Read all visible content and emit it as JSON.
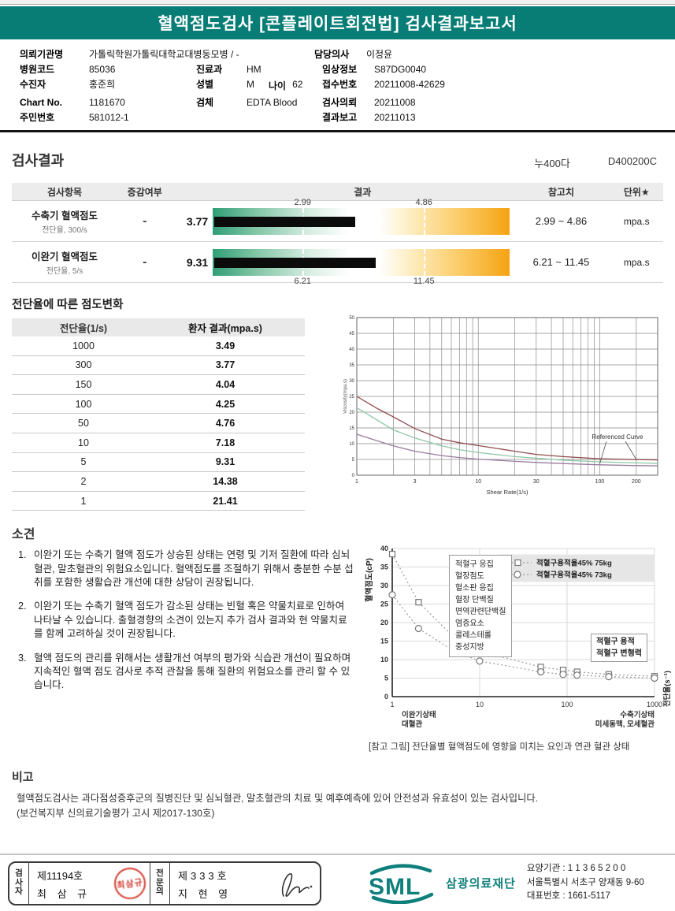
{
  "header": {
    "title": "혈액점도검사 [콘플레이트회전법] 검사결과보고서"
  },
  "patient": {
    "org_label": "의뢰기관명",
    "org": "가톨릭학원가톨릭대학교대병동모병 / -",
    "doctor_label": "담당의사",
    "doctor": "이정윤",
    "hospital_code_label": "병원코드",
    "hospital_code": "85036",
    "dept_label": "진료과",
    "dept": "HM",
    "clinical_label": "임상정보",
    "clinical": "S87DG0040",
    "patient_label": "수진자",
    "patient_name": "홍준희",
    "sex_label": "성별",
    "sex": "M",
    "age_label": "나이",
    "age": "62",
    "receipt_label": "접수번호",
    "receipt": "20211008-42629",
    "chart_label": "Chart No.",
    "chart_no": "1181670",
    "specimen_label": "검체",
    "specimen": "EDTA Blood",
    "request_label": "검사의뢰",
    "request_date": "20211008",
    "resident_label": "주민번호",
    "resident_no": "581012-1",
    "report_label": "결과보고",
    "report_date": "20211013"
  },
  "results": {
    "title": "검사결과",
    "code1": "누400다",
    "code2": "D400200C",
    "headers": {
      "item": "검사항목",
      "flag": "증감여부",
      "result": "결과",
      "reference": "참고치",
      "unit": "단위★"
    },
    "rows": [
      {
        "name": "수축기 혈액점도",
        "sub": "전단율, 300/s",
        "flag": "-",
        "value": "3.77",
        "low": "2.99",
        "high": "4.86",
        "ref": "2.99 ~ 4.86",
        "unit": "mpa.s",
        "low_pct": 30,
        "high_pct": 70.5,
        "bar_pct": 47,
        "label_pos": "top"
      },
      {
        "name": "이완기 혈액점도",
        "sub": "전단율, 5/s",
        "flag": "-",
        "value": "9.31",
        "low": "6.21",
        "high": "11.45",
        "ref": "6.21 ~ 11.45",
        "unit": "mpa.s",
        "low_pct": 30,
        "high_pct": 70.5,
        "bar_pct": 54,
        "label_pos": "bottom"
      }
    ]
  },
  "shear": {
    "title": "전단율에 따른 점도변화",
    "headers": [
      "전단율(1/s)",
      "환자 결과(mpa.s)"
    ],
    "rows": [
      [
        "1000",
        "3.49"
      ],
      [
        "300",
        "3.77"
      ],
      [
        "150",
        "4.04"
      ],
      [
        "100",
        "4.25"
      ],
      [
        "50",
        "4.76"
      ],
      [
        "10",
        "7.18"
      ],
      [
        "5",
        "9.31"
      ],
      [
        "2",
        "14.38"
      ],
      [
        "1",
        "21.41"
      ]
    ]
  },
  "findings": {
    "title": "소견",
    "items": [
      {
        "num": "1.",
        "text": "이완기 또는 수축기 혈액 점도가 상승된 상태는 연령 및 기저 질환에 따라 심뇌혈관, 말초혈관의 위험요소입니다. 혈액점도를 조절하기 위해서 충분한 수분 섭취를 포함한 생활습관 개선에 대한 상담이 권장됩니다."
      },
      {
        "num": "2.",
        "text": "이완기 또는 수축기 혈액 점도가 감소된 상태는 빈혈 혹은 약물치료로 인하여 나타날 수 있습니다. 출혈경향의 소견이 있는지 추가 검사 결과와 현 약물치료를 함께 고려하실 것이 권장됩니다."
      },
      {
        "num": "3.",
        "text": "혈액 점도의 관리를 위해서는 생활개선 여부의 평가와 식습관 개선이 필요하며 지속적인 혈액 점도 검사로 추적 관찰을 통해 질환의 위험요소를 관리 할 수 있습니다."
      }
    ]
  },
  "remarks": {
    "title": "비고",
    "line1": "혈액점도검사는 과다점성증후군의 질병진단 및 심뇌혈관, 말초혈관의 치료 및 예후예측에 있어 안전성과 유효성이 있는 검사입니다.",
    "line2": "(보건복지부 신의료기술평가 고시 제2017-130호)"
  },
  "footer": {
    "examiner_label": "검사자",
    "examiner_no": "제11194호",
    "examiner_name": "최 삼 규",
    "specialist_label": "전문의",
    "specialist_no": "제333호",
    "specialist_name": "지 현 영",
    "stamp_text": "印",
    "logo_text": "SML",
    "org_name": "삼광의료재단",
    "addr1": "요양기관 : 1 1 3 6 5 2 0 0",
    "addr2": "서울특별시 서초구 양재동 9-60",
    "addr3": "대표번호 : 1661-5117"
  },
  "colors": {
    "teal": "#077d76",
    "orange": "#f5a312",
    "green_bar": "#2f9e76",
    "ref_upper": "#8f4d4d",
    "patient_curve": "#8fc7a5",
    "ref_lower": "#9a7a9f",
    "stamp_red": "#d33a2e"
  },
  "chart_data": [
    {
      "type": "line",
      "title": "",
      "xlabel": "Shear Rate(1/s)",
      "ylabel": "Viscosity(mpa.s)",
      "x_scale": "log",
      "xlim": [
        1,
        300
      ],
      "ylim": [
        0,
        50
      ],
      "x_ticks": [
        1,
        3,
        10,
        30,
        100,
        200
      ],
      "y_ticks": [
        0,
        5,
        10,
        15,
        20,
        25,
        30,
        35,
        40,
        45,
        50
      ],
      "grid": true,
      "annotation": {
        "text": "Referenced Curve",
        "x": 140,
        "y": 11.5,
        "leader1": {
          "x": 100,
          "y": 3.6
        },
        "leader2": {
          "x": 200,
          "y": 5.0
        }
      },
      "series": [
        {
          "name": "reference-upper",
          "color": "#8f4d4d",
          "x": [
            1,
            1.5,
            2,
            3,
            5,
            7,
            10,
            20,
            30,
            50,
            100,
            200,
            300
          ],
          "y": [
            25,
            21,
            18.5,
            14.8,
            11.45,
            10.3,
            9.4,
            7.6,
            6.6,
            5.9,
            5.2,
            4.95,
            4.86
          ]
        },
        {
          "name": "patient-result",
          "color": "#8fc7a5",
          "x": [
            1,
            1.5,
            2,
            3,
            5,
            7,
            10,
            20,
            50,
            100,
            150,
            300
          ],
          "y": [
            21.41,
            17.3,
            14.38,
            11.8,
            9.31,
            8.1,
            7.18,
            5.9,
            4.76,
            4.25,
            4.04,
            3.77
          ]
        },
        {
          "name": "reference-lower",
          "color": "#9a7a9f",
          "x": [
            1,
            1.5,
            2,
            3,
            5,
            7,
            10,
            20,
            30,
            50,
            100,
            200,
            300
          ],
          "y": [
            13,
            10.8,
            9.3,
            7.6,
            6.21,
            5.6,
            5.1,
            4.4,
            4.05,
            3.7,
            3.3,
            3.05,
            2.99
          ]
        }
      ]
    },
    {
      "type": "scatter",
      "ylabel": "혈액점도(cP)",
      "y2label": "전단율(s⁻¹)",
      "x_scale": "log",
      "xlim": [
        1,
        1000
      ],
      "ylim": [
        0,
        40
      ],
      "x_ticks": [
        1,
        10,
        100,
        1000
      ],
      "y_ticks": [
        0,
        5,
        10,
        15,
        20,
        25,
        30,
        35,
        40
      ],
      "grid": true,
      "legend": [
        {
          "marker": "square",
          "label": "적혈구용적율45% 75kg"
        },
        {
          "marker": "circle",
          "label": "적혈구용적율45% 73kg"
        }
      ],
      "series": [
        {
          "name": "hct45-75kg",
          "marker": "square",
          "x": [
            1,
            2,
            5,
            10,
            50,
            90,
            130,
            300,
            1000
          ],
          "y": [
            38.5,
            25.5,
            16.2,
            12.3,
            8.0,
            7.2,
            6.7,
            6.0,
            5.5
          ]
        },
        {
          "name": "hct45-73kg",
          "marker": "circle",
          "x": [
            1,
            2,
            5,
            10,
            50,
            90,
            130,
            300,
            1000
          ],
          "y": [
            27.5,
            18.4,
            12.4,
            9.6,
            6.7,
            6.0,
            5.8,
            5.4,
            5.0
          ]
        }
      ],
      "left_box": [
        "적혈구 응집",
        "혈장점도",
        "혈소판 응집",
        "혈장 단백질",
        "면역관련단백질",
        "염증요소",
        "콜레스테롤",
        "중성지방"
      ],
      "right_box": [
        "적혈구 용적",
        "적혈구 변형력"
      ],
      "x_left_label": [
        "이완기상태",
        "대혈관"
      ],
      "x_right_label": [
        "수축기상태",
        "미세동맥, 모세혈관"
      ],
      "caption": "[참고 그림] 전단율별 혈액점도에 영향을 미치는 요인과 연관 혈관 상태"
    }
  ]
}
